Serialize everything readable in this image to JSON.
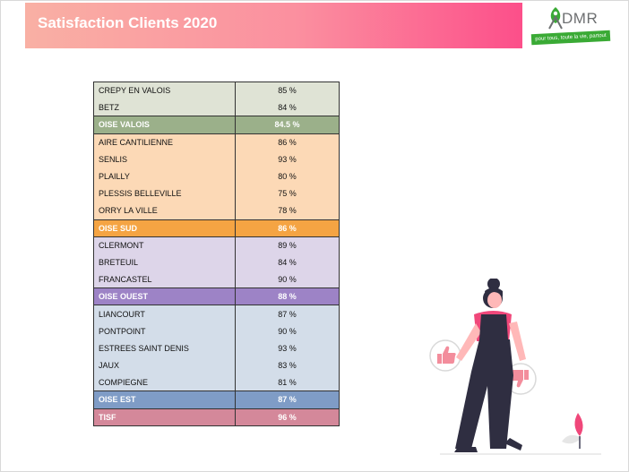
{
  "slide": {
    "title": "Satisfaction Clients 2020",
    "logo": {
      "name": "DMR",
      "tagline": "pour tous, toute la vie, partout"
    },
    "colors": {
      "title_gradient": [
        "#f9b0a4",
        "#fc4f8a"
      ],
      "logo_green": "#3aaa35"
    }
  },
  "table": {
    "groups": [
      {
        "rows": [
          {
            "name": "CREPY EN VALOIS",
            "value": "85 %"
          },
          {
            "name": "BETZ",
            "value": "84 %"
          }
        ],
        "summary": {
          "name": "OISE VALOIS",
          "value": "84.5 %"
        },
        "row_color": "#dfe3d5",
        "summary_color": "#9bb08a"
      },
      {
        "rows": [
          {
            "name": "AIRE CANTILIENNE",
            "value": "86 %"
          },
          {
            "name": "SENLIS",
            "value": "93 %"
          },
          {
            "name": "PLAILLY",
            "value": "80 %"
          },
          {
            "name": "PLESSIS BELLEVILLE",
            "value": "75 %"
          },
          {
            "name": "ORRY LA VILLE",
            "value": "78 %"
          }
        ],
        "summary": {
          "name": "OISE SUD",
          "value": "86 %"
        },
        "row_color": "#fcd9b6",
        "summary_color": "#f5a443"
      },
      {
        "rows": [
          {
            "name": "CLERMONT",
            "value": "89 %"
          },
          {
            "name": "BRETEUIL",
            "value": "84 %"
          },
          {
            "name": "FRANCASTEL",
            "value": "90 %"
          }
        ],
        "summary": {
          "name": "OISE OUEST",
          "value": "88 %"
        },
        "row_color": "#ddd5e9",
        "summary_color": "#9d83c6"
      },
      {
        "rows": [
          {
            "name": "LIANCOURT",
            "value": "87 %"
          },
          {
            "name": "PONTPOINT",
            "value": "90 %"
          },
          {
            "name": "ESTREES SAINT DENIS",
            "value": "93 %"
          },
          {
            "name": "JAUX",
            "value": "83 %"
          },
          {
            "name": "COMPIEGNE",
            "value": "81 %"
          }
        ],
        "summary": {
          "name": "OISE EST",
          "value": "87 %"
        },
        "row_color": "#d3dde9",
        "summary_color": "#7f9cc6"
      }
    ],
    "total": {
      "name": "TISF",
      "value": "96 %",
      "color": "#d4889a"
    }
  },
  "illustration": {
    "subject": "woman-with-thumbs-up-and-thumbs-down",
    "icons": [
      "thumbs-up-icon",
      "thumbs-down-icon",
      "plant-icon"
    ]
  }
}
